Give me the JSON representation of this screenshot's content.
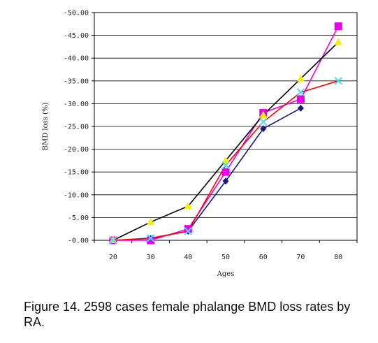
{
  "chart_data": {
    "type": "line",
    "xlabel": "Ages",
    "ylabel": "BMD loss (%)",
    "x": [
      20,
      30,
      40,
      50,
      60,
      70,
      80
    ],
    "ylim": [
      0,
      -50
    ],
    "yticks": [
      "-0.00",
      "-5.00",
      "-10.00",
      "-15.00",
      "-20.00",
      "-25.00",
      "-30.00",
      "-35.00",
      "-40.00",
      "-45.00",
      "-50.00"
    ],
    "series": [
      {
        "values": [
          0,
          -0.4,
          -2.0,
          -13.0,
          -24.5,
          -29.0,
          null
        ],
        "color": "#1a1a7a",
        "marker": "diamond"
      },
      {
        "values": [
          0,
          0,
          -2.5,
          -15.0,
          -28.0,
          -31.0,
          -47.0
        ],
        "color": "#e800e8",
        "marker": "square"
      },
      {
        "values": [
          0,
          -4.0,
          -7.5,
          -17.5,
          -27.5,
          -35.5,
          -43.5
        ],
        "color": "#f5f000",
        "marker": "triangle",
        "line_color": "#000000"
      },
      {
        "values": [
          0,
          -0.5,
          -2.0,
          -16.5,
          -26.0,
          -32.5,
          -35.0
        ],
        "color": "#44e0f0",
        "marker": "x",
        "line_color": "#ff0000"
      }
    ],
    "grid": "horizontal"
  },
  "caption": "Figure 14. 2598 cases female phalange BMD loss rates by RA."
}
